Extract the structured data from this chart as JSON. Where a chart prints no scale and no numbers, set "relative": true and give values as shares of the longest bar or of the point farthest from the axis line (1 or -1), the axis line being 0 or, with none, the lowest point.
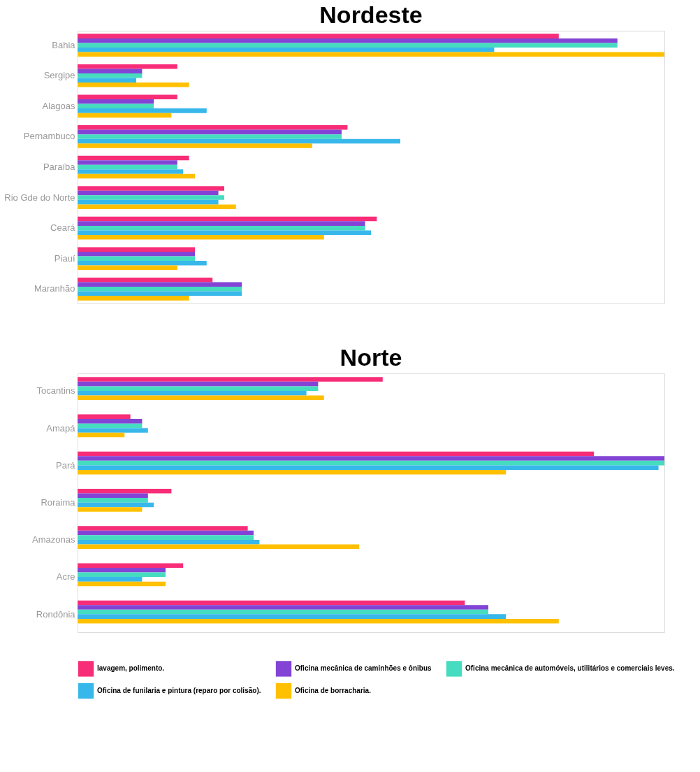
{
  "chart_data": [
    {
      "type": "bar",
      "title": "Nordeste",
      "orientation": "horizontal",
      "relative": true,
      "legend": false,
      "categories": [
        "Bahia",
        "Sergipe",
        "Alagoas",
        "Pernambuco",
        "Paraíba",
        "Rio Gde do Norte",
        "Ceará",
        "Piauí",
        "Maranhão"
      ],
      "series": [
        {
          "color": "#f72d78",
          "values": [
            0.82,
            0.17,
            0.17,
            0.46,
            0.19,
            0.25,
            0.51,
            0.2,
            0.23
          ]
        },
        {
          "color": "#8344d6",
          "values": [
            0.92,
            0.11,
            0.13,
            0.45,
            0.17,
            0.24,
            0.49,
            0.2,
            0.28
          ]
        },
        {
          "color": "#45dcc0",
          "values": [
            0.92,
            0.11,
            0.13,
            0.45,
            0.17,
            0.25,
            0.49,
            0.2,
            0.28
          ]
        },
        {
          "color": "#38b8ea",
          "values": [
            0.71,
            0.1,
            0.22,
            0.55,
            0.18,
            0.24,
            0.5,
            0.22,
            0.28
          ]
        },
        {
          "color": "#ffc000",
          "values": [
            1,
            0.19,
            0.16,
            0.4,
            0.2,
            0.27,
            0.42,
            0.17,
            0.19
          ]
        }
      ]
    },
    {
      "type": "bar",
      "title": "Norte",
      "orientation": "horizontal",
      "relative": true,
      "legend": "bottom",
      "categories": [
        "Tocantins",
        "Amapá",
        "Pará",
        "Roraima",
        "Amazonas",
        "Acre",
        "Rondônia"
      ],
      "series": [
        {
          "name": "lavagem, polimento.",
          "color": "#f72d78",
          "values": [
            0.52,
            0.09,
            0.88,
            0.16,
            0.29,
            0.18,
            0.66
          ]
        },
        {
          "name": "Oficina mecânica de caminhões e ônibus",
          "color": "#8344d6",
          "values": [
            0.41,
            0.11,
            1,
            0.12,
            0.3,
            0.15,
            0.7
          ]
        },
        {
          "name": "Oficina mecânica de automóveis, utilitários e comerciais leves.",
          "color": "#45dcc0",
          "values": [
            0.41,
            0.11,
            1,
            0.12,
            0.3,
            0.15,
            0.7
          ]
        },
        {
          "name": "Oficina de funilaria e pintura (reparo por colisão).",
          "color": "#38b8ea",
          "values": [
            0.39,
            0.12,
            0.99,
            0.13,
            0.31,
            0.11,
            0.73
          ]
        },
        {
          "name": "Oficina de borracharia.",
          "color": "#ffc000",
          "values": [
            0.42,
            0.08,
            0.73,
            0.11,
            0.48,
            0.15,
            0.82
          ]
        }
      ]
    }
  ]
}
